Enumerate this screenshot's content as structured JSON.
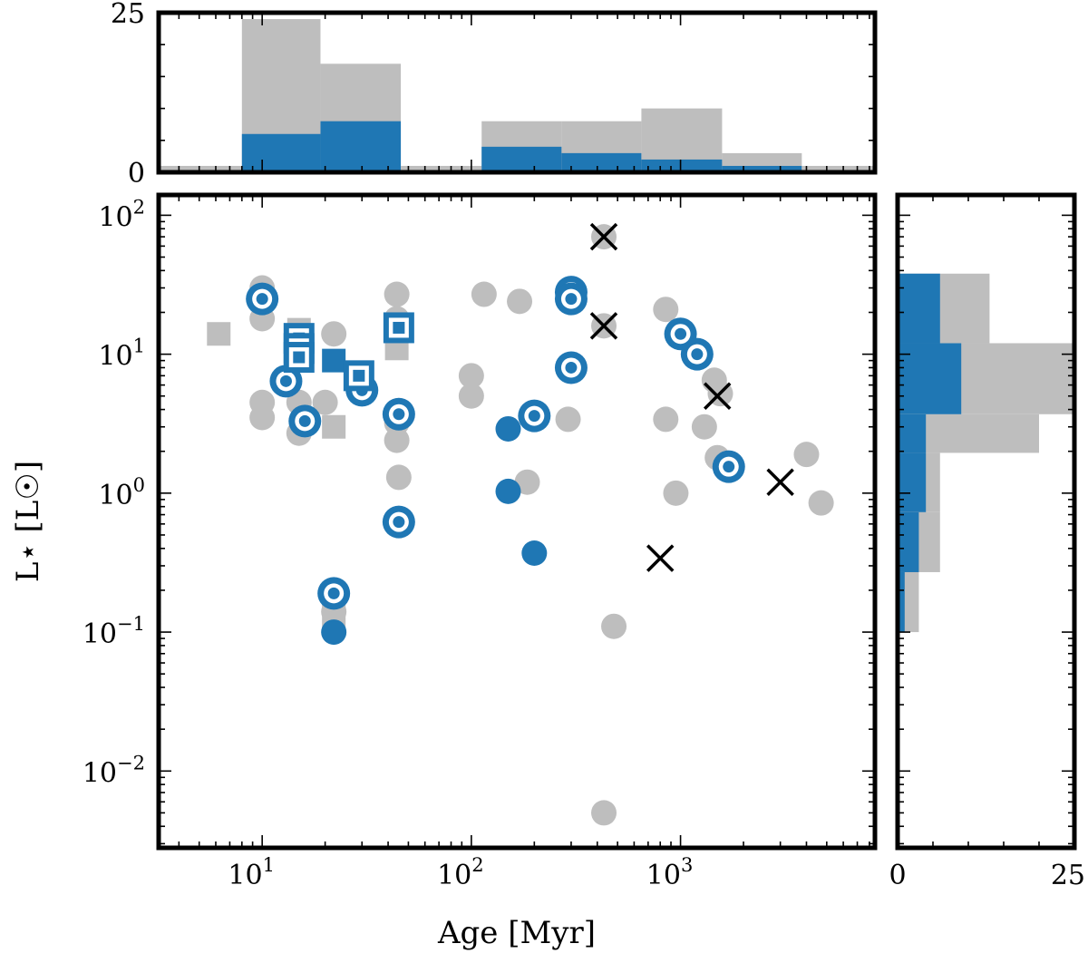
{
  "chart_data": {
    "type": "scatter",
    "title": "",
    "xlabel": "Age [Myr]",
    "ylabel": "L⋆ [L☉]",
    "xscale": "log",
    "yscale": "log",
    "xlim": [
      3.2,
      8500
    ],
    "ylim": [
      0.0028,
      140
    ],
    "colors": {
      "gray": "#bebebe",
      "blue": "#1f77b4",
      "black": "#000000"
    },
    "x_ticks": [
      {
        "value": 10,
        "base": "10",
        "exp": "1"
      },
      {
        "value": 100,
        "base": "10",
        "exp": "2"
      },
      {
        "value": 1000,
        "base": "10",
        "exp": "3"
      }
    ],
    "y_ticks": [
      {
        "value": 0.01,
        "base": "10",
        "exp": "−2"
      },
      {
        "value": 0.1,
        "base": "10",
        "exp": "−1"
      },
      {
        "value": 1,
        "base": "10",
        "exp": "0"
      },
      {
        "value": 10,
        "base": "10",
        "exp": "1"
      },
      {
        "value": 100,
        "base": "10",
        "exp": "2"
      }
    ],
    "series": [
      {
        "name": "gray circles",
        "marker": "circle",
        "color": "gray",
        "points": [
          [
            10,
            30
          ],
          [
            10,
            18
          ],
          [
            10,
            4.5
          ],
          [
            10,
            3.5
          ],
          [
            15,
            2.7
          ],
          [
            15,
            4.5
          ],
          [
            20,
            4.5
          ],
          [
            22,
            14
          ],
          [
            44,
            27
          ],
          [
            44,
            18
          ],
          [
            44,
            3.2
          ],
          [
            44,
            2.4
          ],
          [
            45,
            1.3
          ],
          [
            22,
            0.14
          ],
          [
            100,
            7
          ],
          [
            100,
            5
          ],
          [
            115,
            27
          ],
          [
            170,
            24
          ],
          [
            185,
            1.2
          ],
          [
            290,
            3.4
          ],
          [
            430,
            70
          ],
          [
            430,
            16
          ],
          [
            430,
            0.005
          ],
          [
            480,
            0.11
          ],
          [
            850,
            21
          ],
          [
            850,
            3.4
          ],
          [
            950,
            1.0
          ],
          [
            1000,
            14
          ],
          [
            1450,
            6.5
          ],
          [
            1300,
            3.0
          ],
          [
            1500,
            1.8
          ],
          [
            1550,
            5.2
          ],
          [
            4000,
            1.9
          ],
          [
            4700,
            0.85
          ]
        ]
      },
      {
        "name": "gray squares",
        "marker": "square",
        "color": "gray",
        "points": [
          [
            6.2,
            14
          ],
          [
            22,
            3.0
          ],
          [
            22,
            0.13
          ],
          [
            44,
            11
          ],
          [
            15,
            15
          ]
        ]
      },
      {
        "name": "blue filled circles",
        "marker": "circle",
        "color": "blue",
        "points": [
          [
            22,
            0.1
          ],
          [
            150,
            2.9
          ],
          [
            150,
            1.03
          ],
          [
            200,
            0.37
          ]
        ]
      },
      {
        "name": "blue filled squares",
        "marker": "square",
        "color": "blue",
        "points": [
          [
            22,
            9.0
          ]
        ]
      },
      {
        "name": "blue ringed circles",
        "marker": "ring-circle",
        "color": "blue",
        "points": [
          [
            10,
            25
          ],
          [
            13,
            6.4
          ],
          [
            16,
            3.3
          ],
          [
            22,
            0.19
          ],
          [
            30,
            5.5
          ],
          [
            45,
            3.7
          ],
          [
            45,
            0.62
          ],
          [
            200,
            3.6
          ],
          [
            300,
            28
          ],
          [
            300,
            25
          ],
          [
            300,
            8.0
          ],
          [
            1000,
            14
          ],
          [
            1200,
            10
          ],
          [
            1700,
            1.55
          ]
        ]
      },
      {
        "name": "blue ringed squares",
        "marker": "ring-square",
        "color": "blue",
        "points": [
          [
            15,
            13
          ],
          [
            15,
            11
          ],
          [
            15,
            9.5
          ],
          [
            29,
            7.0
          ],
          [
            45,
            15.5
          ]
        ]
      },
      {
        "name": "black crosses",
        "marker": "x",
        "color": "black",
        "points": [
          [
            430,
            70
          ],
          [
            430,
            16
          ],
          [
            1500,
            5.0
          ],
          [
            800,
            0.34
          ],
          [
            3000,
            1.2
          ]
        ]
      }
    ],
    "top_histogram": {
      "ylim": [
        0,
        25
      ],
      "y_ticks": [
        0,
        25
      ],
      "bins": [
        {
          "x0": 3.2,
          "x1": 8.0,
          "total": 1,
          "blue": 0
        },
        {
          "x0": 8.0,
          "x1": 19.0,
          "total": 24,
          "blue": 6
        },
        {
          "x0": 19.0,
          "x1": 46.0,
          "total": 17,
          "blue": 8
        },
        {
          "x0": 46.0,
          "x1": 112.0,
          "total": 1,
          "blue": 0
        },
        {
          "x0": 112.0,
          "x1": 270.0,
          "total": 8,
          "blue": 4
        },
        {
          "x0": 270.0,
          "x1": 650.0,
          "total": 8,
          "blue": 3
        },
        {
          "x0": 650.0,
          "x1": 1580.0,
          "total": 10,
          "blue": 2
        },
        {
          "x0": 1580.0,
          "x1": 3800.0,
          "total": 3,
          "blue": 1
        },
        {
          "x0": 3800.0,
          "x1": 8500.0,
          "total": 1,
          "blue": 0
        }
      ]
    },
    "right_histogram": {
      "xlim": [
        0,
        25
      ],
      "x_ticks": [
        0,
        25
      ],
      "bins": [
        {
          "y0": 0.0028,
          "y1": 0.1,
          "total": 0,
          "blue": 0
        },
        {
          "y0": 0.1,
          "y1": 0.27,
          "total": 3,
          "blue": 1
        },
        {
          "y0": 0.27,
          "y1": 0.73,
          "total": 6,
          "blue": 3
        },
        {
          "y0": 0.73,
          "y1": 1.95,
          "total": 6,
          "blue": 4
        },
        {
          "y0": 1.95,
          "y1": 3.7,
          "total": 20,
          "blue": 4
        },
        {
          "y0": 3.7,
          "y1": 12,
          "total": 25,
          "blue": 9
        },
        {
          "y0": 12,
          "y1": 38,
          "total": 13,
          "blue": 6
        },
        {
          "y0": 38,
          "y1": 140,
          "total": 0,
          "blue": 0
        }
      ]
    }
  }
}
